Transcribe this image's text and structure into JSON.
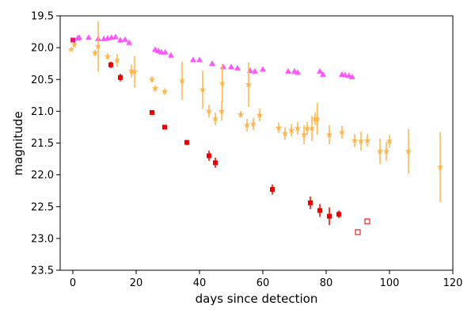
{
  "chart_data": {
    "type": "scatter",
    "xlabel": "days since detection",
    "ylabel": "magnitude",
    "xlim": [
      -4,
      120
    ],
    "ylim": [
      23.5,
      19.5
    ],
    "y_inverted": true,
    "xticks": [
      0,
      20,
      40,
      60,
      80,
      100,
      120
    ],
    "yticks": [
      19.5,
      20.0,
      20.5,
      21.0,
      21.5,
      22.0,
      22.5,
      23.0,
      23.5
    ],
    "xtick_labels": [
      "0",
      "20",
      "40",
      "60",
      "80",
      "100",
      "120"
    ],
    "ytick_labels": [
      "19.5",
      "20.0",
      "20.5",
      "21.0",
      "21.5",
      "22.0",
      "22.5",
      "23.0",
      "23.5"
    ],
    "series": [
      {
        "color": "#ff55ff",
        "marker": "triangle",
        "points": [
          {
            "x": 1.5,
            "y": 19.85
          },
          {
            "x": 2.0,
            "y": 19.84
          },
          {
            "x": 5.0,
            "y": 19.84
          },
          {
            "x": 8.0,
            "y": 19.86
          },
          {
            "x": 9.8,
            "y": 19.86
          },
          {
            "x": 11.0,
            "y": 19.85
          },
          {
            "x": 12.2,
            "y": 19.84
          },
          {
            "x": 13.5,
            "y": 19.83
          },
          {
            "x": 15.0,
            "y": 19.88
          },
          {
            "x": 16.5,
            "y": 19.87
          },
          {
            "x": 17.8,
            "y": 19.92
          },
          {
            "x": 26.0,
            "y": 20.03
          },
          {
            "x": 27.0,
            "y": 20.05
          },
          {
            "x": 28.0,
            "y": 20.07
          },
          {
            "x": 29.2,
            "y": 20.07
          },
          {
            "x": 31.0,
            "y": 20.12
          },
          {
            "x": 38.0,
            "y": 20.19
          },
          {
            "x": 40.0,
            "y": 20.19
          },
          {
            "x": 44.0,
            "y": 20.25
          },
          {
            "x": 47.5,
            "y": 20.3
          },
          {
            "x": 50.0,
            "y": 20.3
          },
          {
            "x": 52.0,
            "y": 20.32
          },
          {
            "x": 56.0,
            "y": 20.36
          },
          {
            "x": 57.5,
            "y": 20.37
          },
          {
            "x": 60.0,
            "y": 20.34
          },
          {
            "x": 68.0,
            "y": 20.37
          },
          {
            "x": 70.0,
            "y": 20.37
          },
          {
            "x": 71.0,
            "y": 20.39
          },
          {
            "x": 78.0,
            "y": 20.37
          },
          {
            "x": 79.0,
            "y": 20.42
          },
          {
            "x": 85.0,
            "y": 20.42
          },
          {
            "x": 86.0,
            "y": 20.43
          },
          {
            "x": 87.2,
            "y": 20.44
          },
          {
            "x": 88.2,
            "y": 20.46
          }
        ]
      },
      {
        "color": "#ffb347",
        "marker": "star",
        "points": [
          {
            "x": -0.5,
            "y": 20.03,
            "err": 0.0
          },
          {
            "x": 0.5,
            "y": 19.95,
            "err": 0.05
          },
          {
            "x": 7.0,
            "y": 20.08,
            "err": 0.05
          },
          {
            "x": 8.0,
            "y": 19.98,
            "err": 0.4
          },
          {
            "x": 11.0,
            "y": 20.14,
            "err": 0.05
          },
          {
            "x": 14.0,
            "y": 20.2,
            "err": 0.1
          },
          {
            "x": 18.5,
            "y": 20.37,
            "err": 0.1
          },
          {
            "x": 19.5,
            "y": 20.38,
            "err": 0.25
          },
          {
            "x": 25.0,
            "y": 20.5,
            "err": 0.05
          },
          {
            "x": 26.0,
            "y": 20.64,
            "err": 0.05
          },
          {
            "x": 29.0,
            "y": 20.69,
            "err": 0.05
          },
          {
            "x": 34.5,
            "y": 20.52,
            "err": 0.3
          },
          {
            "x": 41.0,
            "y": 20.66,
            "err": 0.3
          },
          {
            "x": 43.0,
            "y": 21.0,
            "err": 0.1
          },
          {
            "x": 45.0,
            "y": 21.12,
            "err": 0.1
          },
          {
            "x": 47.0,
            "y": 21.0,
            "err": 0.15
          },
          {
            "x": 47.2,
            "y": 20.56,
            "err": 0.3
          },
          {
            "x": 53.0,
            "y": 21.05,
            "err": 0.05
          },
          {
            "x": 55.0,
            "y": 21.22,
            "err": 0.1
          },
          {
            "x": 55.5,
            "y": 20.58,
            "err": 0.35
          },
          {
            "x": 57.0,
            "y": 21.2,
            "err": 0.1
          },
          {
            "x": 59.0,
            "y": 21.06,
            "err": 0.1
          },
          {
            "x": 65.0,
            "y": 21.26,
            "err": 0.08
          },
          {
            "x": 67.0,
            "y": 21.35,
            "err": 0.1
          },
          {
            "x": 69.0,
            "y": 21.3,
            "err": 0.1
          },
          {
            "x": 71.0,
            "y": 21.27,
            "err": 0.1
          },
          {
            "x": 73.0,
            "y": 21.37,
            "err": 0.15
          },
          {
            "x": 74.0,
            "y": 21.27,
            "err": 0.1
          },
          {
            "x": 75.5,
            "y": 21.27,
            "err": 0.2
          },
          {
            "x": 76.5,
            "y": 21.12,
            "err": 0.1
          },
          {
            "x": 77.2,
            "y": 21.12,
            "err": 0.25
          },
          {
            "x": 81.0,
            "y": 21.37,
            "err": 0.15
          },
          {
            "x": 85.0,
            "y": 21.33,
            "err": 0.1
          },
          {
            "x": 89.0,
            "y": 21.46,
            "err": 0.1
          },
          {
            "x": 91.0,
            "y": 21.47,
            "err": 0.15
          },
          {
            "x": 93.0,
            "y": 21.46,
            "err": 0.1
          },
          {
            "x": 97.0,
            "y": 21.63,
            "err": 0.2
          },
          {
            "x": 99.0,
            "y": 21.63,
            "err": 0.15
          },
          {
            "x": 100.0,
            "y": 21.47,
            "err": 0.1
          },
          {
            "x": 106.0,
            "y": 21.63,
            "err": 0.35
          },
          {
            "x": 116.0,
            "y": 21.88,
            "err": 0.55
          }
        ]
      },
      {
        "color": "#ee0000",
        "marker": "square",
        "points": [
          {
            "x": 0.0,
            "y": 19.88,
            "err": 0.03,
            "color": "#e8127a"
          },
          {
            "x": 12.0,
            "y": 20.27,
            "err": 0.05
          },
          {
            "x": 15.0,
            "y": 20.47,
            "err": 0.06
          },
          {
            "x": 25.0,
            "y": 21.02,
            "err": 0.03
          },
          {
            "x": 29.0,
            "y": 21.25,
            "err": 0.03
          },
          {
            "x": 36.0,
            "y": 21.49,
            "err": 0.04
          },
          {
            "x": 43.0,
            "y": 21.7,
            "err": 0.08
          },
          {
            "x": 45.0,
            "y": 21.81,
            "err": 0.08
          },
          {
            "x": 63.0,
            "y": 22.23,
            "err": 0.08
          },
          {
            "x": 75.0,
            "y": 22.44,
            "err": 0.1
          },
          {
            "x": 78.0,
            "y": 22.56,
            "err": 0.1
          },
          {
            "x": 81.0,
            "y": 22.65,
            "err": 0.14
          },
          {
            "x": 84.0,
            "y": 22.62,
            "err": 0.06
          }
        ]
      },
      {
        "color": "#ee2222",
        "marker": "square-open",
        "points": [
          {
            "x": 90.0,
            "y": 22.9
          },
          {
            "x": 93.0,
            "y": 22.73
          }
        ]
      }
    ]
  }
}
